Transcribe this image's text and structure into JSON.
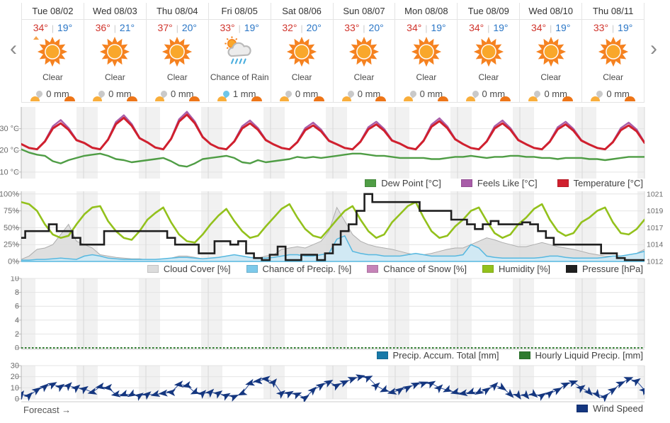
{
  "nav": {
    "prev_icon": "‹",
    "next_icon": "›"
  },
  "footer": {
    "forecast_label": "Forecast →"
  },
  "colors": {
    "high_temp": "#d0342c",
    "low_temp": "#2a76c6",
    "sun_ray": "#f58220",
    "sun_core": "#f9a72b",
    "cloud_fill": "#ececec",
    "cloud_edge": "#b9b9b9",
    "rain_stroke": "#4aaede",
    "drop_gray": "#c9c9c9",
    "drop_blue": "#6ec6ea",
    "sunrise": "#f9ae3b",
    "sunset": "#ee7518",
    "night_band": "#f1f1f1",
    "grid": "#e4e4e4",
    "day_line": "#d8d8d8"
  },
  "days": [
    {
      "date": "Tue 08/02",
      "high": "34°",
      "low": "19°",
      "condition": "Clear",
      "icon": "sun",
      "precip": "0 mm",
      "precip_icon": "drop-gray"
    },
    {
      "date": "Wed 08/03",
      "high": "36°",
      "low": "21°",
      "condition": "Clear",
      "icon": "sun",
      "precip": "0 mm",
      "precip_icon": "drop-gray"
    },
    {
      "date": "Thu 08/04",
      "high": "37°",
      "low": "20°",
      "condition": "Clear",
      "icon": "sun",
      "precip": "0 mm",
      "precip_icon": "drop-gray"
    },
    {
      "date": "Fri 08/05",
      "high": "33°",
      "low": "19°",
      "condition": "Chance of Rain",
      "icon": "sun-cloud-rain",
      "precip": "1 mm",
      "precip_icon": "drop-blue"
    },
    {
      "date": "Sat 08/06",
      "high": "32°",
      "low": "20°",
      "condition": "Clear",
      "icon": "sun",
      "precip": "0 mm",
      "precip_icon": "drop-gray"
    },
    {
      "date": "Sun 08/07",
      "high": "33°",
      "low": "20°",
      "condition": "Clear",
      "icon": "sun",
      "precip": "0 mm",
      "precip_icon": "drop-gray"
    },
    {
      "date": "Mon 08/08",
      "high": "34°",
      "low": "19°",
      "condition": "Clear",
      "icon": "sun",
      "precip": "0 mm",
      "precip_icon": "drop-gray"
    },
    {
      "date": "Tue 08/09",
      "high": "34°",
      "low": "19°",
      "condition": "Clear",
      "icon": "sun",
      "precip": "0 mm",
      "precip_icon": "drop-gray"
    },
    {
      "date": "Wed 08/10",
      "high": "34°",
      "low": "19°",
      "condition": "Clear",
      "icon": "sun",
      "precip": "0 mm",
      "precip_icon": "drop-gray"
    },
    {
      "date": "Thu 08/11",
      "high": "33°",
      "low": "19°",
      "condition": "Clear",
      "icon": "sun",
      "precip": "0 mm",
      "precip_icon": "drop-gray"
    }
  ],
  "chart_data": [
    {
      "type": "line",
      "x_span": "Tue 08/02 00:00 – Thu 08/11 24:00 (10 days, 3-hour samples)",
      "y_range": [
        7,
        40
      ],
      "yticks": [
        {
          "v": 30,
          "label": "30 °C"
        },
        {
          "v": 20,
          "label": "20 °C"
        },
        {
          "v": 10,
          "label": "10 °C"
        }
      ],
      "series": [
        {
          "name": "Dew Point [°C]",
          "color": "#4f9d45",
          "kind": "line",
          "width": 2.4,
          "visible": true,
          "values": [
            20.5,
            19,
            18,
            17.5,
            15,
            14,
            15.5,
            16.5,
            17.5,
            18,
            18.5,
            17.5,
            16,
            15.5,
            14.5,
            15,
            15.5,
            16,
            16.5,
            15,
            13,
            12.5,
            14,
            16,
            16.5,
            17,
            17.5,
            16.5,
            14.5,
            14,
            15.5,
            14.5,
            15,
            15.5,
            16,
            17,
            16.5,
            17,
            16.5,
            17,
            17.5,
            18,
            18.5,
            18.5,
            18,
            17.5,
            17.5,
            17,
            16.5,
            16.5,
            16.5,
            16.5,
            16,
            16,
            16.5,
            17,
            17,
            17.5,
            17,
            16.5,
            17,
            17,
            17.5,
            17.5,
            17,
            17,
            16.5,
            16.5,
            16,
            16.5,
            16.5,
            16.5,
            16,
            16,
            15.5,
            16,
            16.5,
            17,
            17,
            17
          ]
        },
        {
          "name": "Feels Like [°C]",
          "color": "#a85ca8",
          "kind": "line",
          "width": 2.4,
          "visible": true,
          "values": [
            22.9,
            21.1,
            20.5,
            24.3,
            31.1,
            34,
            30.3,
            24.9,
            23.4,
            21.2,
            20.5,
            25.1,
            33.1,
            36.2,
            32.2,
            25.8,
            23.7,
            21.3,
            20.5,
            25.5,
            34.3,
            37.8,
            33.3,
            26.3,
            22.9,
            21.1,
            20.5,
            24.3,
            31.1,
            33.8,
            30.3,
            24.9,
            22.7,
            21.1,
            20.5,
            24,
            30.3,
            32.8,
            29.6,
            24.6,
            22.8,
            21.1,
            20.5,
            24.2,
            30.7,
            33.2,
            29.9,
            24.7,
            23.1,
            21.2,
            20.5,
            24.6,
            31.9,
            34.8,
            31.1,
            25.3,
            22.9,
            21.1,
            20.5,
            24.3,
            31.1,
            33.8,
            30.3,
            24.9,
            22.8,
            21.1,
            20.5,
            24.2,
            30.7,
            33.2,
            29.9,
            24.7,
            22.7,
            21.1,
            20.5,
            24,
            30.3,
            32.8,
            29.6,
            23.7
          ]
        },
        {
          "name": "Temperature [°C]",
          "color": "#d0202e",
          "kind": "line",
          "width": 3,
          "visible": true,
          "values": [
            22.9,
            21.1,
            20.5,
            24.1,
            30.1,
            32.5,
            29.5,
            24.7,
            23.4,
            21.2,
            20.5,
            24.9,
            32.1,
            35,
            31.4,
            25.6,
            23.7,
            21.3,
            20.5,
            25.3,
            33.3,
            36.5,
            32.5,
            26.1,
            22.9,
            21.1,
            20.5,
            24.1,
            30.1,
            32.5,
            29.5,
            24.7,
            22.7,
            21.1,
            20.5,
            23.8,
            29.3,
            31.5,
            28.8,
            24.4,
            22.8,
            21.1,
            20.5,
            24,
            29.7,
            32,
            29.1,
            24.5,
            23.1,
            21.2,
            20.5,
            24.4,
            30.9,
            33.5,
            30.3,
            25.1,
            22.9,
            21.1,
            20.5,
            24.1,
            30.1,
            32.5,
            29.5,
            24.7,
            22.8,
            21.1,
            20.5,
            24,
            29.7,
            32,
            29.1,
            24.5,
            22.7,
            21.1,
            20.5,
            23.8,
            29.3,
            31.5,
            28.8,
            23.5
          ]
        }
      ]
    },
    {
      "type": "line",
      "x_span": "Tue 08/02 00:00 – Thu 08/11 24:00 (10 days, 3-hour samples)",
      "y_range": [
        0,
        104
      ],
      "yticks": [
        {
          "v": 100,
          "label": "100%"
        },
        {
          "v": 75,
          "label": "75%"
        },
        {
          "v": 50,
          "label": "50%"
        },
        {
          "v": 25,
          "label": "25%"
        },
        {
          "v": 0,
          "label": "0%"
        }
      ],
      "right_yticks": [
        {
          "v": 100,
          "label": "1021"
        },
        {
          "v": 75,
          "label": "1019"
        },
        {
          "v": 50,
          "label": "1017"
        },
        {
          "v": 25,
          "label": "1014"
        },
        {
          "v": 0,
          "label": "1012"
        }
      ],
      "right_axis_note": "Pressure axis in hPa: 1012–1021 mapped to 0–100%",
      "series": [
        {
          "name": "Cloud Cover [%]",
          "color": "#adadad",
          "fill": "#dcdcdc",
          "kind": "area",
          "width": 1,
          "visible": true,
          "values": [
            3,
            8,
            18,
            20,
            25,
            40,
            55,
            30,
            25,
            20,
            10,
            8,
            6,
            5,
            4,
            4,
            2,
            2,
            3,
            5,
            8,
            8,
            6,
            4,
            3,
            5,
            8,
            10,
            8,
            6,
            5,
            8,
            10,
            18,
            20,
            22,
            20,
            25,
            30,
            45,
            80,
            60,
            40,
            30,
            25,
            22,
            20,
            18,
            15,
            12,
            10,
            10,
            12,
            15,
            18,
            20,
            20,
            25,
            30,
            35,
            32,
            28,
            25,
            22,
            22,
            25,
            28,
            25,
            22,
            20,
            18,
            15,
            12,
            10,
            8,
            8,
            8,
            10,
            12,
            18
          ]
        },
        {
          "name": "Chance of Precip. [%]",
          "color": "#56b8e0",
          "fill": "#cfeaf6",
          "kind": "area",
          "width": 1.5,
          "visible": true,
          "values": [
            2,
            2,
            3,
            3,
            4,
            5,
            4,
            3,
            8,
            10,
            8,
            5,
            4,
            3,
            3,
            3,
            3,
            3,
            4,
            5,
            6,
            6,
            5,
            4,
            5,
            6,
            8,
            10,
            8,
            6,
            5,
            5,
            6,
            8,
            10,
            10,
            8,
            8,
            10,
            12,
            33,
            38,
            15,
            12,
            10,
            10,
            8,
            8,
            8,
            10,
            12,
            10,
            8,
            8,
            8,
            8,
            10,
            25,
            20,
            8,
            6,
            5,
            5,
            5,
            5,
            5,
            6,
            8,
            8,
            6,
            5,
            5,
            5,
            5,
            6,
            8,
            8,
            10,
            12,
            15
          ]
        },
        {
          "name": "Chance of Snow [%]",
          "color": "#c583b8",
          "fill": "#e8cce0",
          "kind": "area",
          "width": 1,
          "visible": false,
          "values": [
            0,
            0
          ]
        },
        {
          "name": "Humidity [%]",
          "color": "#93c11c",
          "kind": "line",
          "width": 2.6,
          "visible": true,
          "values": [
            88,
            85,
            75,
            55,
            40,
            35,
            38,
            55,
            70,
            80,
            82,
            60,
            45,
            35,
            32,
            45,
            62,
            72,
            80,
            58,
            40,
            30,
            28,
            40,
            55,
            68,
            78,
            60,
            45,
            35,
            38,
            52,
            65,
            78,
            85,
            65,
            48,
            38,
            35,
            48,
            62,
            75,
            82,
            62,
            45,
            35,
            40,
            58,
            70,
            82,
            88,
            65,
            45,
            35,
            38,
            52,
            62,
            75,
            80,
            60,
            42,
            35,
            40,
            55,
            65,
            78,
            85,
            62,
            45,
            38,
            42,
            58,
            65,
            75,
            80,
            58,
            42,
            40,
            48,
            62
          ]
        },
        {
          "name": "Pressure [hPa]",
          "color": "#1f1f1f",
          "kind": "step",
          "width": 2.6,
          "visible": true,
          "values": [
            35,
            45,
            45,
            45,
            55,
            45,
            45,
            35,
            25,
            25,
            25,
            45,
            45,
            45,
            45,
            45,
            45,
            45,
            45,
            35,
            25,
            25,
            25,
            12,
            12,
            30,
            30,
            25,
            30,
            12,
            5,
            2,
            10,
            22,
            2,
            2,
            10,
            10,
            2,
            12,
            25,
            45,
            55,
            75,
            100,
            88,
            88,
            88,
            88,
            88,
            88,
            75,
            75,
            75,
            75,
            62,
            62,
            55,
            48,
            55,
            60,
            55,
            55,
            55,
            58,
            55,
            45,
            35,
            25,
            25,
            25,
            25,
            25,
            25,
            12,
            12,
            5,
            2,
            2,
            2
          ]
        }
      ]
    },
    {
      "type": "line",
      "x_span": "Tue 08/02 00:00 – Thu 08/11 24:00 (10 days)",
      "y_range": [
        0,
        10
      ],
      "yticks": [
        {
          "v": 10,
          "label": "10"
        },
        {
          "v": 8,
          "label": "8"
        },
        {
          "v": 6,
          "label": "6"
        },
        {
          "v": 4,
          "label": "4"
        },
        {
          "v": 2,
          "label": "2"
        },
        {
          "v": 0,
          "label": "0"
        }
      ],
      "series": [
        {
          "name": "Precip. Accum. Total [mm]",
          "color": "#1779a8",
          "fill": "#7fc3de",
          "kind": "area",
          "width": 1,
          "visible": false,
          "values": [
            0,
            0
          ]
        },
        {
          "name": "Hourly Liquid Precip. [mm]",
          "color": "#2d7a2d",
          "kind": "dashline",
          "width": 2,
          "visible": true,
          "values": [
            0,
            0
          ]
        }
      ]
    },
    {
      "type": "line",
      "x_span": "Tue 08/02 00:00 – Thu 08/11 24:00 (10 days, 3-hour samples)",
      "y_range": [
        0,
        30
      ],
      "yticks": [
        {
          "v": 30,
          "label": "30"
        },
        {
          "v": 20,
          "label": "20"
        },
        {
          "v": 10,
          "label": "10"
        },
        {
          "v": 0,
          "label": "0"
        }
      ],
      "series": [
        {
          "name": "Wind Speed",
          "color": "#14367f",
          "line_color": "#2a4d9b",
          "kind": "wind",
          "width": 1,
          "visible": true,
          "values": [
            4,
            3,
            8,
            11,
            13,
            11,
            12,
            10,
            9,
            6,
            11,
            10,
            4,
            4,
            4,
            3,
            4,
            4,
            5,
            6,
            13,
            12,
            6,
            5,
            6,
            5,
            3,
            2,
            5,
            14,
            16,
            18,
            15,
            5,
            5,
            4,
            1,
            8,
            12,
            15,
            12,
            15,
            18,
            20,
            19,
            12,
            8,
            6,
            8,
            10,
            13,
            14,
            14,
            10,
            8,
            6,
            5,
            6,
            6,
            8,
            12,
            10,
            4,
            3,
            3,
            4,
            3,
            5,
            8,
            13,
            15,
            10,
            6,
            4,
            2,
            8,
            14,
            18,
            16,
            8
          ],
          "angles": [
            -55,
            -45,
            -35,
            -40,
            -30,
            -35,
            -45,
            -40,
            -35,
            165,
            170,
            175,
            170,
            160,
            150,
            -35,
            -40,
            165,
            175,
            185,
            175,
            165,
            155,
            -45,
            -45,
            -35,
            -30,
            -25,
            155,
            165,
            175,
            185,
            -50,
            -40,
            -30,
            -25,
            -35,
            -45,
            -35,
            -30,
            -30,
            -25,
            -20,
            -15,
            -25,
            -40,
            155,
            165,
            -35,
            -30,
            -25,
            -20,
            -30,
            -45,
            155,
            165,
            170,
            160,
            150,
            -35,
            -45,
            35,
            45,
            55,
            50,
            40,
            -35,
            -40,
            -30,
            -25,
            -20,
            -35,
            45,
            55,
            -45,
            -35,
            -25,
            -20,
            -35,
            -40
          ]
        }
      ]
    }
  ]
}
